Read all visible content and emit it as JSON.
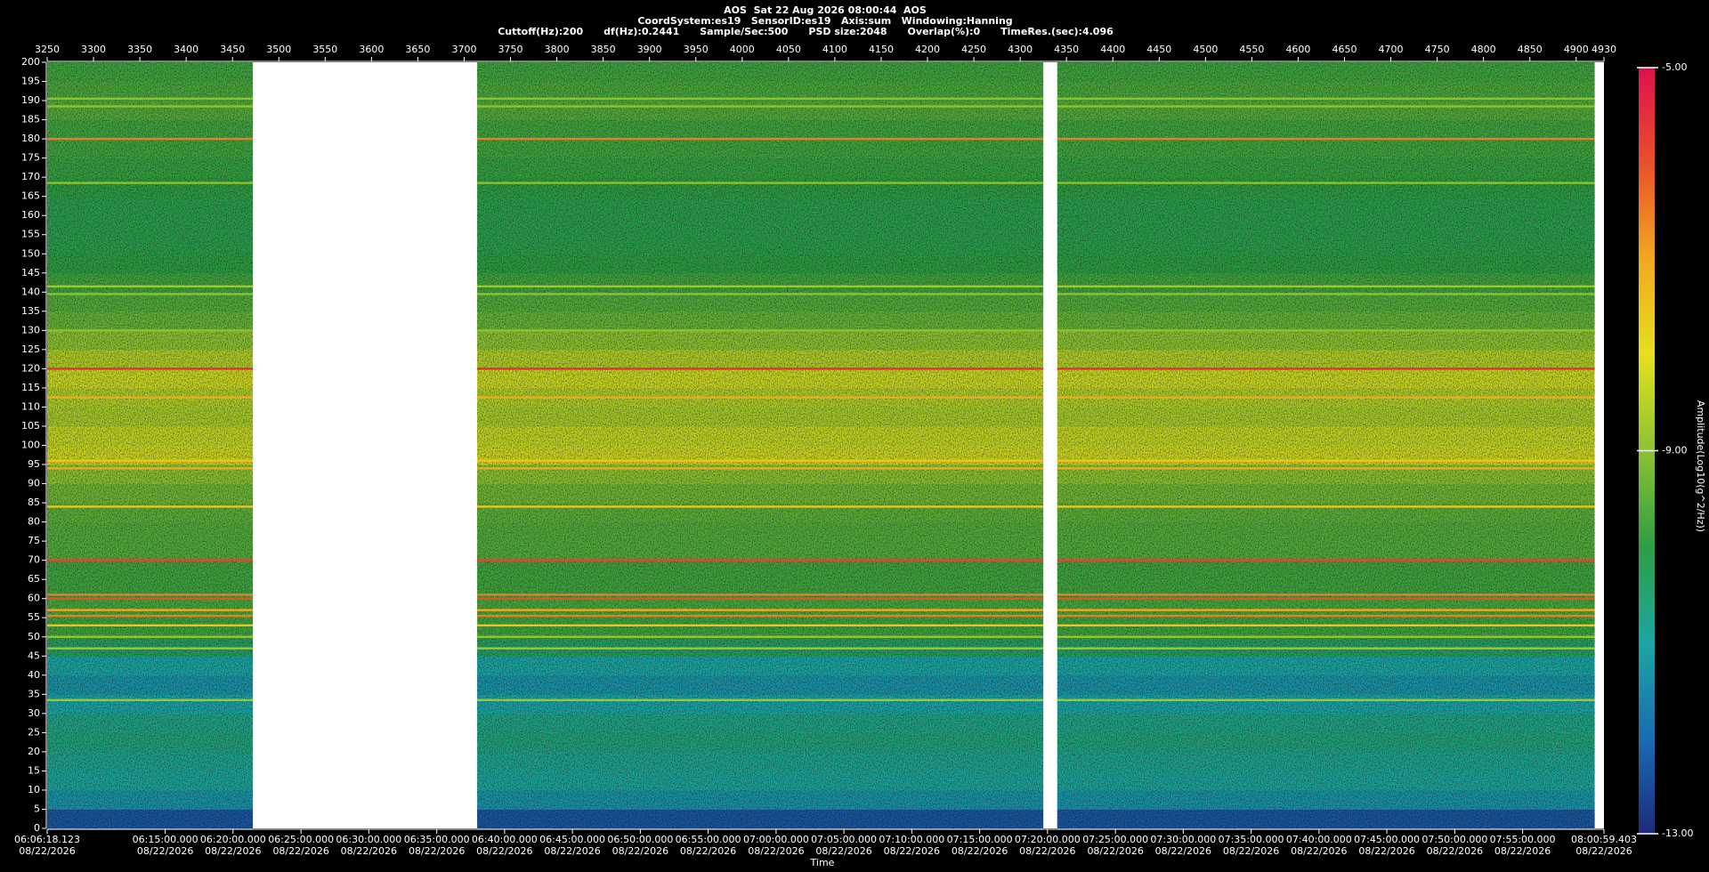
{
  "chart_data": {
    "type": "spectrogram",
    "title": "AOS  Sat 22 Aug 2026 08:00:44  AOS",
    "subtitle": [
      "CoordSystem:es19   SensorID:es19   Axis:sum   Windowing:Hanning",
      "Cuttoff(Hz):200      df(Hz):0.2441      Sample/Sec:500      PSD size:2048      Overlap(%):0      TimeRes.(sec):4.096"
    ],
    "x_label": "Time",
    "colorbar_label": "Amplitude(Log10(g^2/Hz))",
    "xlim": [
      3250,
      4930
    ],
    "xticks": [
      3250,
      3300,
      3350,
      3400,
      3450,
      3500,
      3550,
      3600,
      3650,
      3700,
      3750,
      3800,
      3850,
      3900,
      3950,
      4000,
      4050,
      4100,
      4150,
      4200,
      4250,
      4300,
      4350,
      4400,
      4450,
      4500,
      4550,
      4600,
      4650,
      4700,
      4750,
      4800,
      4850,
      4900,
      4930
    ],
    "x2ticks": [
      {
        "value": 3250,
        "label": "06:06:18.123\n08/22/2026"
      },
      {
        "value": 3377.4,
        "label": "06:15:00.000\n08/22/2026"
      },
      {
        "value": 3450.6,
        "label": "06:20:00.000\n08/22/2026"
      },
      {
        "value": 3523.9,
        "label": "06:25:00.000\n08/22/2026"
      },
      {
        "value": 3597.1,
        "label": "06:30:00.000\n08/22/2026"
      },
      {
        "value": 3670.4,
        "label": "06:35:00.000\n08/22/2026"
      },
      {
        "value": 3743.6,
        "label": "06:40:00.000\n08/22/2026"
      },
      {
        "value": 3816.8,
        "label": "06:45:00.000\n08/22/2026"
      },
      {
        "value": 3890.1,
        "label": "06:50:00.000\n08/22/2026"
      },
      {
        "value": 3963.3,
        "label": "06:55:00.000\n08/22/2026"
      },
      {
        "value": 4036.6,
        "label": "07:00:00.000\n08/22/2026"
      },
      {
        "value": 4109.8,
        "label": "07:05:00.000\n08/22/2026"
      },
      {
        "value": 4183.0,
        "label": "07:10:00.000\n08/22/2026"
      },
      {
        "value": 4256.3,
        "label": "07:15:00.000\n08/22/2026"
      },
      {
        "value": 4329.5,
        "label": "07:20:00.000\n08/22/2026"
      },
      {
        "value": 4402.8,
        "label": "07:25:00.000\n08/22/2026"
      },
      {
        "value": 4476.0,
        "label": "07:30:00.000\n08/22/2026"
      },
      {
        "value": 4549.2,
        "label": "07:35:00.000\n08/22/2026"
      },
      {
        "value": 4622.5,
        "label": "07:40:00.000\n08/22/2026"
      },
      {
        "value": 4695.7,
        "label": "07:45:00.000\n08/22/2026"
      },
      {
        "value": 4769.0,
        "label": "07:50:00.000\n08/22/2026"
      },
      {
        "value": 4842.2,
        "label": "07:55:00.000\n08/22/2026"
      },
      {
        "value": 4930,
        "label": "08:00:59.403\n08/22/2026"
      }
    ],
    "ylim": [
      0,
      200
    ],
    "yticks": [
      0,
      5,
      10,
      15,
      20,
      25,
      30,
      35,
      40,
      45,
      50,
      55,
      60,
      65,
      70,
      75,
      80,
      85,
      90,
      95,
      100,
      105,
      110,
      115,
      120,
      125,
      130,
      135,
      140,
      145,
      150,
      155,
      160,
      165,
      170,
      175,
      180,
      185,
      190,
      195,
      200
    ],
    "segments": [
      [
        3250,
        3472
      ],
      [
        3714,
        4325
      ],
      [
        4340,
        4920
      ]
    ],
    "frequency_bins": [
      0,
      5,
      10,
      15,
      20,
      25,
      30,
      35,
      40,
      45,
      50,
      55,
      60,
      65,
      70,
      75,
      80,
      85,
      90,
      95,
      100,
      105,
      110,
      115,
      120,
      125,
      130,
      135,
      140,
      145,
      150,
      155,
      160,
      165,
      170,
      175,
      180,
      185,
      190,
      195,
      200
    ],
    "amplitude": [
      -12.3,
      -11.3,
      -10.9,
      -10.8,
      -10.6,
      -10.7,
      -11.0,
      -11.3,
      -11.0,
      -10.3,
      -9.8,
      -9.7,
      -9.8,
      -9.8,
      -9.6,
      -9.6,
      -9.5,
      -9.3,
      -9.0,
      -8.3,
      -8.4,
      -8.7,
      -8.6,
      -8.3,
      -8.6,
      -9.0,
      -9.4,
      -9.6,
      -9.8,
      -10.0,
      -10.1,
      -10.1,
      -10.1,
      -10.0,
      -9.9,
      -9.8,
      -9.8,
      -9.6,
      -9.7,
      -9.8
    ],
    "tones": [
      {
        "frequency": 33.5,
        "amplitude": -8.8
      },
      {
        "frequency": 47,
        "amplitude": -8.8
      },
      {
        "frequency": 50,
        "amplitude": -8.9
      },
      {
        "frequency": 53,
        "amplitude": -7.5
      },
      {
        "frequency": 55.5,
        "amplitude": -6.5
      },
      {
        "frequency": 57,
        "amplitude": -7
      },
      {
        "frequency": 60,
        "amplitude": -6
      },
      {
        "frequency": 61,
        "amplitude": -6.5
      },
      {
        "frequency": 70,
        "amplitude": -5.8
      },
      {
        "frequency": 84,
        "amplitude": -7.5
      },
      {
        "frequency": 94,
        "amplitude": -7
      },
      {
        "frequency": 96,
        "amplitude": -7.5
      },
      {
        "frequency": 112.5,
        "amplitude": -7
      },
      {
        "frequency": 120,
        "amplitude": -5.5
      },
      {
        "frequency": 130,
        "amplitude": -9
      },
      {
        "frequency": 139.5,
        "amplitude": -9
      },
      {
        "frequency": 141.5,
        "amplitude": -8.8
      },
      {
        "frequency": 168.5,
        "amplitude": -9
      },
      {
        "frequency": 180,
        "amplitude": -6.5
      },
      {
        "frequency": 188.5,
        "amplitude": -9
      },
      {
        "frequency": 190.5,
        "amplitude": -9
      }
    ],
    "clim": [
      -13,
      -5
    ],
    "cticks": [
      {
        "value": -5,
        "label": "-5.00"
      },
      {
        "value": -9,
        "label": "-9.00"
      },
      {
        "value": -13,
        "label": "-13.00"
      }
    ],
    "colormap": [
      "#1e2a7e",
      "#1a6cb0",
      "#1ca6a4",
      "#2e9e44",
      "#8cc232",
      "#e6e01e",
      "#f2a820",
      "#e8502a",
      "#e0104e"
    ],
    "gap_color": "#ffffff"
  }
}
